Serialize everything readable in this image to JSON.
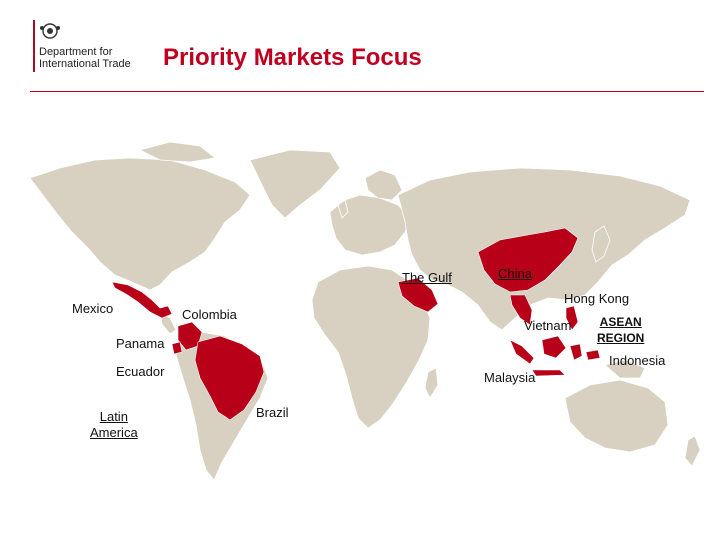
{
  "header": {
    "org_line1": "Department for",
    "org_line2": "International Trade",
    "title": "Priority Markets Focus"
  },
  "colors": {
    "land": "#d8d0c0",
    "highlight": "#b80018",
    "title": "#c00020"
  },
  "map": {
    "labels": {
      "mexico": "Mexico",
      "colombia": "Colombia",
      "panama": "Panama",
      "ecuador": "Ecuador",
      "latin_line1": "Latin",
      "latin_line2": "America",
      "brazil": "Brazil",
      "gulf": "The Gulf",
      "china": "China",
      "hongkong": "Hong Kong",
      "vietnam": "Vietnam",
      "asean_line1": "ASEAN",
      "asean_line2": "REGION",
      "indonesia": "Indonesia",
      "malaysia": "Malaysia"
    }
  }
}
